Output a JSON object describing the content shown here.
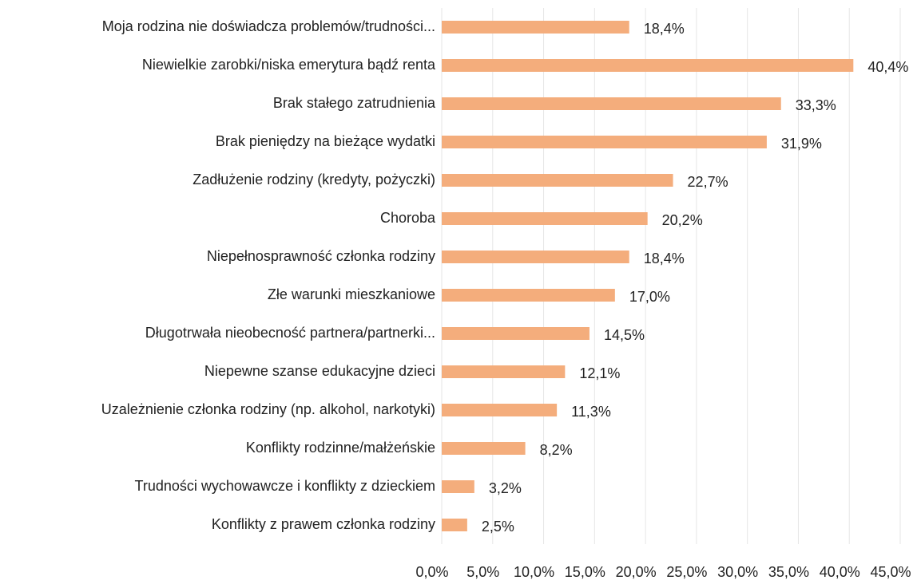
{
  "chart_data": {
    "type": "barh",
    "categories": [
      "Moja rodzina nie doświadcza problemów/trudności...",
      "Niewielkie zarobki/niska emerytura bądź renta",
      "Brak stałego zatrudnienia",
      "Brak pieniędzy na bieżące wydatki",
      "Zadłużenie rodziny (kredyty, pożyczki)",
      "Choroba",
      "Niepełnosprawność członka rodziny",
      "Złe warunki mieszkaniowe",
      "Długotrwała nieobecność partnera/partnerki...",
      "Niepewne szanse edukacyjne dzieci",
      "Uzależnienie członka rodziny (np. alkohol, narkotyki)",
      "Konflikty rodzinne/małżeńskie",
      "Trudności wychowawcze i konflikty z dzieckiem",
      "Konflikty z prawem członka rodziny"
    ],
    "values": [
      18.4,
      40.4,
      33.3,
      31.9,
      22.7,
      20.2,
      18.4,
      17.0,
      14.5,
      12.1,
      11.3,
      8.2,
      3.2,
      2.5
    ],
    "value_labels": [
      "18,4%",
      "40,4%",
      "33,3%",
      "31,9%",
      "22,7%",
      "20,2%",
      "18,4%",
      "17,0%",
      "14,5%",
      "12,1%",
      "11,3%",
      "8,2%",
      "3,2%",
      "2,5%"
    ],
    "color": "#f4ad7c",
    "xlim": [
      0,
      45
    ],
    "xticks": [
      {
        "value": 0,
        "label": "0,0%"
      },
      {
        "value": 5,
        "label": "5,0%"
      },
      {
        "value": 10,
        "label": "10,0%"
      },
      {
        "value": 15,
        "label": "15,0%"
      },
      {
        "value": 20,
        "label": "20,0%"
      },
      {
        "value": 25,
        "label": "25,0%"
      },
      {
        "value": 30,
        "label": "30,0%"
      },
      {
        "value": 35,
        "label": "35,0%"
      },
      {
        "value": 40,
        "label": "40,0%"
      },
      {
        "value": 45,
        "label": "45,0%"
      }
    ],
    "grid": true
  }
}
